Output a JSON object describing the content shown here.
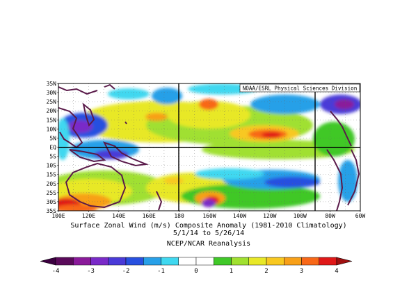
{
  "credit": "NOAA/ESRL Physical Sciences Division",
  "title_line1": "Surface Zonal Wind (m/s) Composite Anomaly (1981-2010 Climatology)",
  "title_line2": "5/1/14  to 5/26/14",
  "source": "NCEP/NCAR Reanalysis",
  "lat_labels": [
    "35N",
    "30N",
    "25N",
    "20N",
    "15N",
    "10N",
    "5N",
    "EQ",
    "5S",
    "10S",
    "15S",
    "20S",
    "25S",
    "30S",
    "35S"
  ],
  "lon_labels": [
    "100E",
    "120E",
    "140E",
    "160E",
    "180",
    "160W",
    "140W",
    "120W",
    "100W",
    "80W",
    "60W"
  ],
  "colorbar": {
    "tick_labels": [
      "-4",
      "-3",
      "-2",
      "-1",
      "0",
      "1",
      "2",
      "3",
      "4"
    ],
    "colors": [
      "#5a0a5a",
      "#8a1a9a",
      "#7a2ac8",
      "#4a3ad8",
      "#2850e0",
      "#28a0e8",
      "#40d8f0",
      "#ffffff",
      "#ffffff",
      "#40c828",
      "#a0e030",
      "#e8e828",
      "#f8c820",
      "#f8a018",
      "#f86818",
      "#e01818"
    ],
    "min_color": "#3c0040",
    "max_color": "#a01010"
  },
  "colors": {
    "coast": "#5a1a4a",
    "frame": "#000000"
  }
}
